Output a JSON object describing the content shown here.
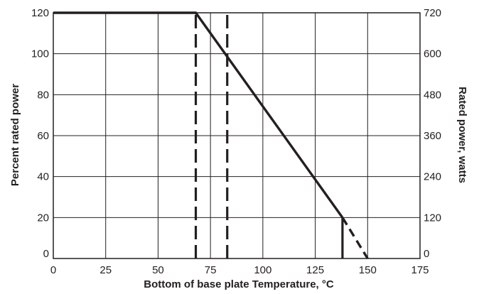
{
  "chart_data": {
    "type": "line",
    "title": "",
    "xlabel": "Bottom of base plate Temperature, °C",
    "ylabel": "Percent rated power",
    "y2label": "Rated power, watts",
    "xlim": [
      0,
      175
    ],
    "ylim": [
      0,
      120
    ],
    "y2lim": [
      0,
      720
    ],
    "x_ticks": [
      0,
      25,
      50,
      75,
      100,
      125,
      150,
      175
    ],
    "y_ticks": [
      0,
      20,
      40,
      60,
      80,
      100,
      120
    ],
    "y2_ticks": [
      0,
      120,
      240,
      360,
      480,
      600,
      720
    ],
    "grid": true,
    "series": [
      {
        "style": "solid",
        "x": [
          0,
          68,
          138
        ],
        "y": [
          120,
          120,
          20
        ]
      },
      {
        "style": "dashed",
        "x": [
          138,
          150
        ],
        "y": [
          20,
          0
        ]
      }
    ],
    "markers": [
      {
        "style": "solid",
        "x": 138,
        "y": [
          0,
          20
        ]
      },
      {
        "style": "dashed",
        "x": 68,
        "y": [
          0,
          120
        ]
      },
      {
        "style": "dashed",
        "x": 83,
        "y": [
          0,
          120
        ]
      }
    ],
    "colors": {
      "line": "#231f20",
      "background": "#ffffff"
    }
  }
}
